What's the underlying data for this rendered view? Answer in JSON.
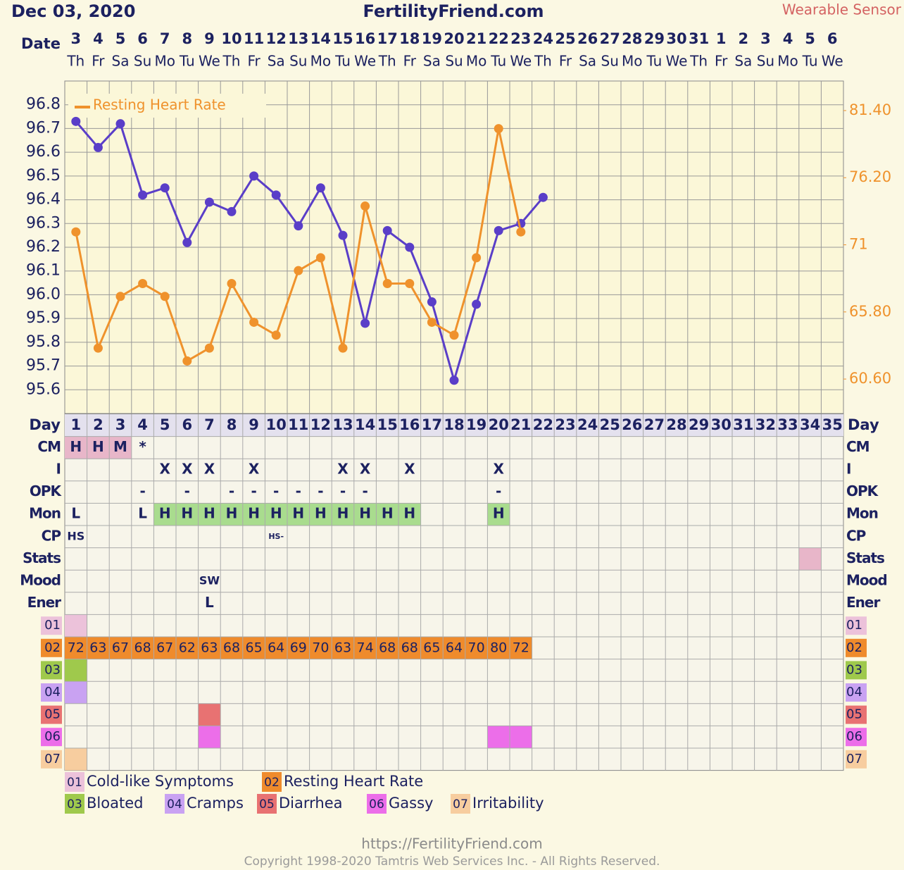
{
  "header": {
    "date": "Dec 03, 2020",
    "site": "FertilityFriend.com",
    "source": "Wearable Sensor"
  },
  "chart_data": {
    "type": "line",
    "date_label": "Date",
    "categories": [
      3,
      4,
      5,
      6,
      7,
      8,
      9,
      10,
      11,
      12,
      13,
      14,
      15,
      16,
      17,
      18,
      19,
      20,
      21,
      22,
      23,
      24,
      25,
      26,
      27,
      28,
      29,
      30,
      31,
      1,
      2,
      3,
      4,
      5,
      6
    ],
    "weekdays": [
      "Th",
      "Fr",
      "Sa",
      "Su",
      "Mo",
      "Tu",
      "We",
      "Th",
      "Fr",
      "Sa",
      "Su",
      "Mo",
      "Tu",
      "We",
      "Th",
      "Fr",
      "Sa",
      "Su",
      "Mo",
      "Tu",
      "We",
      "Th",
      "Fr",
      "Sa",
      "Su",
      "Mo",
      "Tu",
      "We",
      "Th",
      "Fr",
      "Sa",
      "Su",
      "Mo",
      "Tu",
      "We"
    ],
    "ylim": [
      95.5,
      96.9
    ],
    "yticks": [
      95.6,
      95.7,
      95.8,
      95.9,
      {
        "value": 96,
        "label": "96.0"
      },
      96.1,
      96.2,
      96.3,
      96.4,
      96.5,
      96.6,
      96.7,
      96.8
    ],
    "y2lim": [
      57.93,
      83.69
    ],
    "y2ticks": [
      {
        "value": 60.6,
        "label": "60.60"
      },
      {
        "value": 65.8,
        "label": "65.80"
      },
      71,
      {
        "value": 76.2,
        "label": "76.20"
      },
      {
        "value": 81.4,
        "label": "81.40"
      }
    ],
    "grid": true,
    "legend": "top-left",
    "series": [
      {
        "color": "#5a3ec8",
        "values": [
          96.73,
          96.62,
          96.72,
          96.42,
          96.45,
          96.22,
          96.39,
          96.35,
          96.5,
          96.42,
          96.29,
          96.45,
          96.25,
          95.88,
          96.27,
          96.2,
          95.97,
          95.64,
          95.96,
          96.27,
          96.3,
          96.41,
          null,
          null,
          null,
          null,
          null,
          null,
          null,
          null,
          null,
          null,
          null,
          null,
          null
        ]
      },
      {
        "name": "Resting Heart Rate",
        "color": "#ef922c",
        "axis": "y2",
        "values": [
          72,
          63,
          67,
          68,
          67,
          62,
          63,
          68,
          65,
          64,
          69,
          70,
          63,
          74,
          68,
          68,
          65,
          64,
          70,
          80,
          72,
          null,
          null,
          null,
          null,
          null,
          null,
          null,
          null,
          null,
          null,
          null,
          null,
          null,
          null
        ]
      }
    ]
  },
  "table": {
    "day_label": "Day",
    "days": [
      1,
      2,
      3,
      4,
      5,
      6,
      7,
      8,
      9,
      10,
      11,
      12,
      13,
      14,
      15,
      16,
      17,
      18,
      19,
      20,
      21,
      22,
      23,
      24,
      25,
      26,
      27,
      28,
      29,
      30,
      31,
      32,
      33,
      34,
      35
    ],
    "rows": [
      {
        "label": "CM",
        "cells": {
          "1": "H",
          "2": "H",
          "3": "M",
          "4": "*"
        },
        "fill": "#e8b6c9",
        "filled": [
          1,
          2,
          3
        ]
      },
      {
        "label": "I",
        "cells": {
          "5": "X",
          "6": "X",
          "7": "X",
          "9": "X",
          "13": "X",
          "14": "X",
          "16": "X",
          "20": "X"
        }
      },
      {
        "label": "OPK",
        "cells": {
          "4": "-",
          "6": "-",
          "8": "-",
          "9": "-",
          "10": "-",
          "11": "-",
          "12": "-",
          "13": "-",
          "14": "-",
          "20": "-"
        }
      },
      {
        "label": "Mon",
        "cells": {
          "1": "L",
          "4": "L",
          "5": "H",
          "6": "H",
          "7": "H",
          "8": "H",
          "9": "H",
          "10": "H",
          "11": "H",
          "12": "H",
          "13": "H",
          "14": "H",
          "15": "H",
          "16": "H",
          "20": "H"
        },
        "fill": "#a9dc8e",
        "filled": [
          5,
          6,
          7,
          8,
          9,
          10,
          11,
          12,
          13,
          14,
          15,
          16,
          20
        ]
      },
      {
        "label": "CP",
        "cells": {
          "1": "HS",
          "10": "HS-"
        }
      },
      {
        "label": "Stats",
        "cells": {},
        "fill": "#e8b6c9",
        "filled": [
          34
        ]
      },
      {
        "label": "Mood",
        "cells": {
          "7": "SW"
        }
      },
      {
        "label": "Ener",
        "cells": {
          "7": "L"
        }
      },
      {
        "label": "01",
        "cells": {},
        "fill": "#ecc2da",
        "filled": [
          1
        ]
      },
      {
        "label": "02",
        "cells": {},
        "fill": "#ef8b2c",
        "filled": [
          1,
          2,
          3,
          4,
          5,
          6,
          7,
          8,
          9,
          10,
          11,
          12,
          13,
          14,
          15,
          16,
          17,
          18,
          19,
          20,
          21
        ]
      },
      {
        "label": "03",
        "cells": {},
        "fill": "#9fc94c",
        "filled": [
          1
        ]
      },
      {
        "label": "04",
        "cells": {},
        "fill": "#c9a2f2",
        "filled": [
          1
        ]
      },
      {
        "label": "05",
        "cells": {},
        "fill": "#e87272",
        "filled": [
          7
        ]
      },
      {
        "label": "06",
        "cells": {},
        "fill": "#ec6ee9",
        "filled": [
          7,
          20,
          21
        ]
      },
      {
        "label": "07",
        "cells": {},
        "fill": "#f7cd9f",
        "filled": [
          1
        ]
      }
    ]
  },
  "symptom_legend": [
    {
      "code": "01",
      "label": "Cold-like Symptoms",
      "color": "#ecc2da"
    },
    {
      "code": "02",
      "label": "Resting Heart Rate",
      "color": "#ef8b2c"
    },
    {
      "code": "03",
      "label": "Bloated",
      "color": "#9fc94c"
    },
    {
      "code": "04",
      "label": "Cramps",
      "color": "#c9a2f2"
    },
    {
      "code": "05",
      "label": "Diarrhea",
      "color": "#e87272"
    },
    {
      "code": "06",
      "label": "Gassy",
      "color": "#ec6ee9"
    },
    {
      "code": "07",
      "label": "Irritability",
      "color": "#f7cd9f"
    }
  ],
  "footer": {
    "url": "https://FertilityFriend.com",
    "copyright": "Copyright 1998-2020 Tamtris Web Services Inc. - All Rights Reserved."
  }
}
